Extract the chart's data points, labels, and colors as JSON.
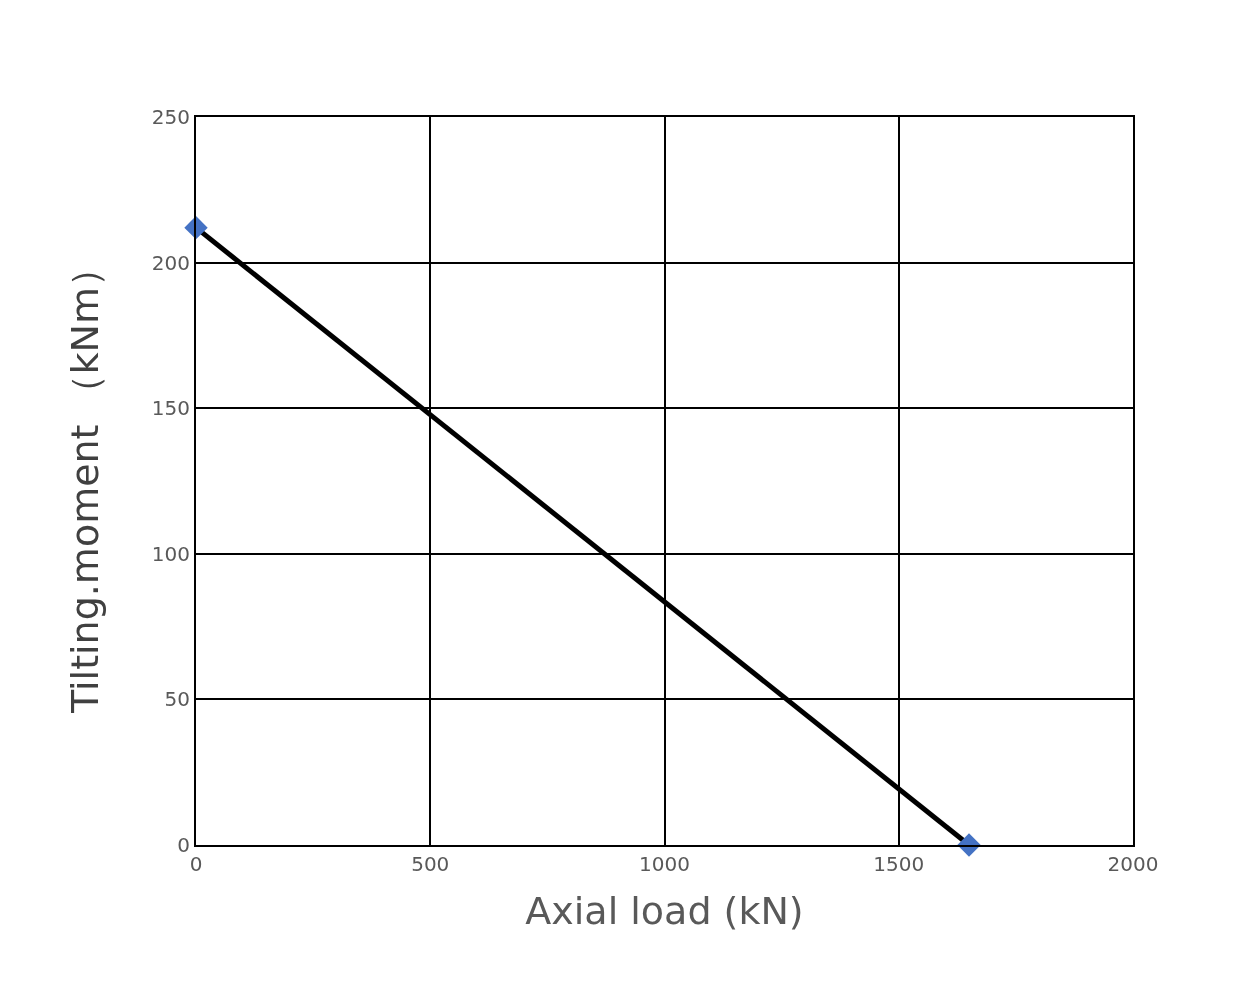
{
  "chart_data": {
    "type": "line",
    "xlabel": "Axial load (kN)",
    "ylabel": "Tilting.moment （kNm）",
    "x": [
      0,
      1650
    ],
    "series": [
      {
        "color": "#000000",
        "marker": "none",
        "values": [
          212,
          0
        ]
      },
      {
        "type": "scatter",
        "color": "#4472c4",
        "marker": "diamond",
        "values": [
          212,
          0
        ]
      }
    ],
    "xlim": [
      0,
      2000
    ],
    "xticks": [
      0,
      500,
      1000,
      1500,
      2000
    ],
    "ylim": [
      0,
      250
    ],
    "yticks": [
      0,
      50,
      100,
      150,
      200,
      250
    ],
    "grid": true
  }
}
